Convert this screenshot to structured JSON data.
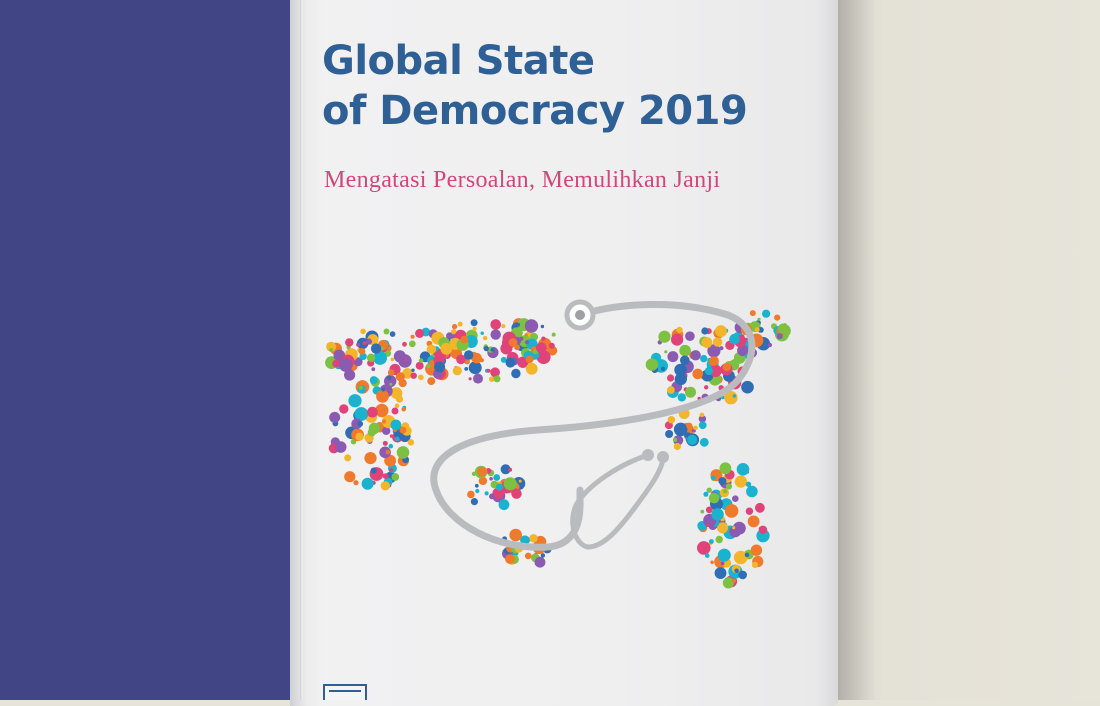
{
  "cover": {
    "title_line1": "Global State",
    "title_line2": "of Democracy 2019",
    "subtitle": "Mengatasi Persoalan, Memulihkan Janji"
  },
  "colors": {
    "left_panel": "#424585",
    "background": "#e6e3d9",
    "cover": "#efeff0",
    "title": "#2e5f95",
    "subtitle": "#d2477a",
    "dot_palette": [
      "#e0427a",
      "#f07a2b",
      "#7cc142",
      "#19b3cf",
      "#2f6db4",
      "#f2b52b",
      "#8a5bb1"
    ]
  },
  "illustration": {
    "description_icons": [
      "world-map-dots",
      "stethoscope"
    ]
  }
}
